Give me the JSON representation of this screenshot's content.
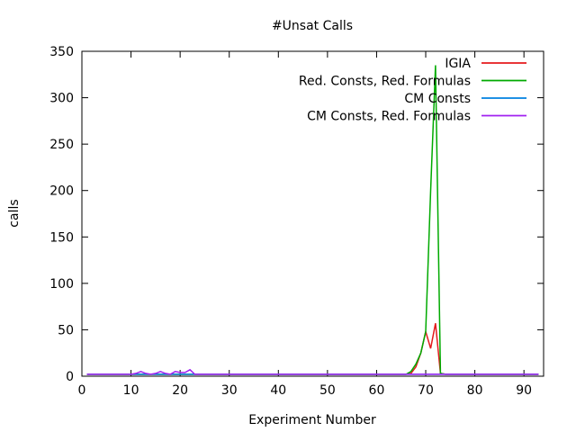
{
  "chart_data": {
    "type": "line",
    "title": "#Unsat Calls",
    "xlabel": "Experiment Number",
    "ylabel": "calls",
    "xlim": [
      0,
      94
    ],
    "ylim": [
      0,
      350
    ],
    "xticks": [
      0,
      10,
      20,
      30,
      40,
      50,
      60,
      70,
      80,
      90
    ],
    "yticks": [
      0,
      50,
      100,
      150,
      200,
      250,
      300,
      350
    ],
    "grid": false,
    "legend_position": "top-right",
    "series": [
      {
        "name": "IGIA",
        "color": "#e41a1c",
        "points": [
          [
            1,
            2
          ],
          [
            66,
            2
          ],
          [
            67,
            3
          ],
          [
            68,
            10
          ],
          [
            69,
            25
          ],
          [
            70,
            48
          ],
          [
            71,
            30
          ],
          [
            72,
            57
          ],
          [
            73,
            3
          ],
          [
            74,
            2
          ],
          [
            93,
            2
          ]
        ]
      },
      {
        "name": "Red. Consts, Red. Formulas",
        "color": "#00aa00",
        "points": [
          [
            1,
            2
          ],
          [
            66,
            2
          ],
          [
            67,
            5
          ],
          [
            68,
            13
          ],
          [
            69,
            25
          ],
          [
            70,
            48
          ],
          [
            71,
            200
          ],
          [
            72,
            335
          ],
          [
            73,
            3
          ],
          [
            74,
            2
          ],
          [
            93,
            2
          ]
        ]
      },
      {
        "name": "CM Consts",
        "color": "#0080e0",
        "points": [
          [
            1,
            2
          ],
          [
            93,
            2
          ]
        ]
      },
      {
        "name": "CM Consts, Red. Formulas",
        "color": "#a020f0",
        "points": [
          [
            1,
            2
          ],
          [
            10,
            2
          ],
          [
            11,
            3
          ],
          [
            12,
            5
          ],
          [
            13,
            3
          ],
          [
            14,
            2
          ],
          [
            15,
            3
          ],
          [
            16,
            5
          ],
          [
            17,
            3
          ],
          [
            18,
            2
          ],
          [
            19,
            5
          ],
          [
            20,
            4
          ],
          [
            21,
            4
          ],
          [
            22,
            7
          ],
          [
            23,
            2
          ],
          [
            93,
            2
          ]
        ]
      }
    ]
  }
}
